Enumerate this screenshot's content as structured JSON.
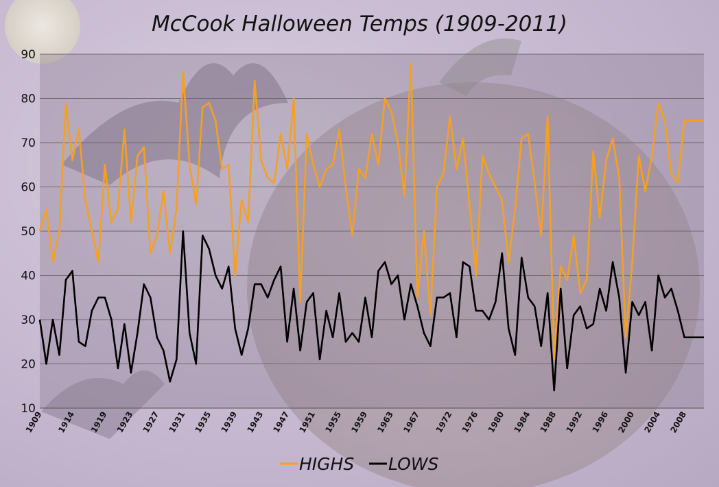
{
  "chart_data": {
    "type": "line",
    "title": "McCook Halloween Temps (1909-2011)",
    "xlabel": "",
    "ylabel": "",
    "ylim": [
      10,
      90
    ],
    "yticks": [
      10,
      20,
      30,
      40,
      50,
      60,
      70,
      80,
      90
    ],
    "x_start": 1909,
    "x_end": 2011,
    "xticks": [
      1909,
      1914,
      1919,
      1923,
      1927,
      1931,
      1935,
      1939,
      1943,
      1947,
      1951,
      1955,
      1959,
      1963,
      1967,
      1972,
      1976,
      1980,
      1984,
      1988,
      1992,
      1996,
      2000,
      2004,
      2008
    ],
    "grid": true,
    "legend_position": "bottom",
    "x": [
      1909,
      1910,
      1911,
      1912,
      1913,
      1914,
      1915,
      1916,
      1917,
      1918,
      1919,
      1920,
      1921,
      1922,
      1923,
      1924,
      1925,
      1926,
      1927,
      1928,
      1929,
      1930,
      1931,
      1932,
      1933,
      1934,
      1935,
      1936,
      1937,
      1938,
      1939,
      1940,
      1941,
      1942,
      1943,
      1944,
      1945,
      1946,
      1947,
      1948,
      1949,
      1950,
      1951,
      1952,
      1953,
      1954,
      1955,
      1956,
      1957,
      1958,
      1959,
      1960,
      1961,
      1962,
      1963,
      1964,
      1965,
      1966,
      1967,
      1968,
      1969,
      1970,
      1971,
      1972,
      1973,
      1974,
      1975,
      1976,
      1977,
      1978,
      1979,
      1980,
      1981,
      1982,
      1983,
      1984,
      1985,
      1986,
      1987,
      1988,
      1989,
      1990,
      1991,
      1992,
      1993,
      1994,
      1995,
      1996,
      1997,
      1998,
      1999,
      2000,
      2001,
      2002,
      2003,
      2004,
      2005,
      2006,
      2007,
      2008,
      2009,
      2010,
      2011
    ],
    "series": [
      {
        "name": "HIGHS",
        "color": "#f5a023",
        "values": [
          50,
          55,
          43,
          50,
          79,
          66,
          73,
          57,
          50,
          43,
          65,
          52,
          55,
          73,
          52,
          67,
          69,
          45,
          49,
          59,
          45,
          55,
          86,
          65,
          56,
          78,
          79,
          75,
          64,
          65,
          40,
          57,
          52,
          84,
          66,
          62,
          61,
          72,
          64,
          80,
          34,
          72,
          65,
          60,
          64,
          65,
          73,
          60,
          49,
          64,
          62,
          72,
          65,
          80,
          77,
          70,
          58,
          88,
          35,
          50,
          31,
          60,
          63,
          76,
          64,
          71,
          56,
          40,
          67,
          63,
          60,
          57,
          43,
          55,
          71,
          72,
          61,
          49,
          76,
          21,
          42,
          39,
          49,
          36,
          39,
          68,
          53,
          66,
          71,
          62,
          26,
          43,
          67,
          59,
          67,
          79,
          75,
          63,
          61,
          75,
          75,
          75,
          75
        ]
      },
      {
        "name": "LOWS",
        "color": "#000000",
        "values": [
          30,
          20,
          30,
          22,
          39,
          41,
          25,
          24,
          32,
          35,
          35,
          30,
          19,
          29,
          18,
          27,
          38,
          35,
          26,
          23,
          16,
          21,
          50,
          27,
          20,
          49,
          46,
          40,
          37,
          42,
          28,
          22,
          28,
          38,
          38,
          35,
          39,
          42,
          25,
          37,
          23,
          34,
          36,
          21,
          32,
          26,
          36,
          25,
          27,
          25,
          35,
          26,
          41,
          43,
          38,
          40,
          30,
          38,
          33,
          27,
          24,
          35,
          35,
          36,
          26,
          43,
          42,
          32,
          32,
          30,
          34,
          45,
          28,
          22,
          44,
          35,
          33,
          24,
          36,
          14,
          37,
          19,
          31,
          33,
          28,
          29,
          37,
          32,
          43,
          35,
          18,
          34,
          31,
          34,
          23,
          40,
          35,
          37,
          32,
          26,
          26,
          26,
          26
        ]
      }
    ]
  }
}
